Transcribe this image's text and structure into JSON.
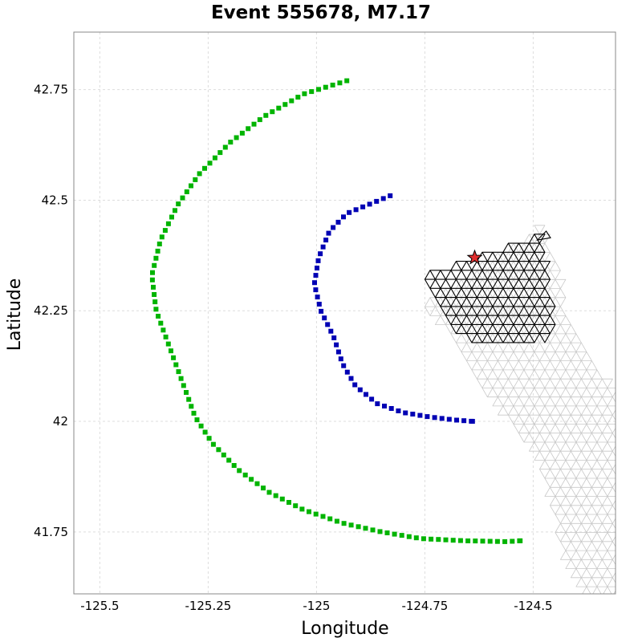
{
  "chart_data": {
    "type": "scatter",
    "title": "Event 555678, M7.17",
    "xlabel": "Longitude",
    "ylabel": "Latitude",
    "xlim": [
      -125.56,
      -124.31
    ],
    "ylim": [
      41.61,
      42.88
    ],
    "x_ticks": [
      {
        "value": -125.5,
        "label": "-125.5"
      },
      {
        "value": -125.25,
        "label": "-125.25"
      },
      {
        "value": -125.0,
        "label": "-125"
      },
      {
        "value": -124.75,
        "label": "-124.75"
      },
      {
        "value": -124.5,
        "label": "-124.5"
      }
    ],
    "y_ticks": [
      {
        "value": 41.75,
        "label": "41.75"
      },
      {
        "value": 42.0,
        "label": "42"
      },
      {
        "value": 42.25,
        "label": "42.25"
      },
      {
        "value": 42.5,
        "label": "42.5"
      },
      {
        "value": 42.75,
        "label": "42.75"
      }
    ],
    "grid": true,
    "colors": {
      "outer_contour": "#00b400",
      "inner_contour": "#0000b4",
      "fault_mesh": "#c8c8c8",
      "rupture_mesh": "#000000",
      "epicenter": "#e03030"
    },
    "series": [
      {
        "marker": "square",
        "color": "#00b400",
        "points": [
          [
            -124.93,
            42.77
          ],
          [
            -125.03,
            42.74
          ],
          [
            -125.12,
            42.69
          ],
          [
            -125.2,
            42.63
          ],
          [
            -125.27,
            42.56
          ],
          [
            -125.32,
            42.49
          ],
          [
            -125.36,
            42.41
          ],
          [
            -125.38,
            42.33
          ],
          [
            -125.37,
            42.25
          ],
          [
            -125.34,
            42.17
          ],
          [
            -125.31,
            42.09
          ],
          [
            -125.28,
            42.01
          ],
          [
            -125.24,
            41.95
          ],
          [
            -125.18,
            41.89
          ],
          [
            -125.11,
            41.84
          ],
          [
            -125.03,
            41.8
          ],
          [
            -124.94,
            41.77
          ],
          [
            -124.85,
            41.75
          ],
          [
            -124.76,
            41.735
          ],
          [
            -124.66,
            41.73
          ],
          [
            -124.56,
            41.728
          ],
          [
            -124.53,
            41.73
          ]
        ]
      },
      {
        "marker": "square",
        "color": "#0000b4",
        "points": [
          [
            -124.83,
            42.51
          ],
          [
            -124.88,
            42.49
          ],
          [
            -124.93,
            42.47
          ],
          [
            -124.97,
            42.43
          ],
          [
            -124.995,
            42.37
          ],
          [
            -125.005,
            42.31
          ],
          [
            -124.99,
            42.25
          ],
          [
            -124.96,
            42.19
          ],
          [
            -124.94,
            42.13
          ],
          [
            -124.91,
            42.08
          ],
          [
            -124.86,
            42.04
          ],
          [
            -124.8,
            42.02
          ],
          [
            -124.74,
            42.01
          ],
          [
            -124.68,
            42.003
          ],
          [
            -124.64,
            42.0
          ]
        ]
      }
    ],
    "fault_mesh_outline": [
      [
        -124.48,
        42.44
      ],
      [
        -124.44,
        42.34
      ],
      [
        -124.42,
        42.22
      ],
      [
        -124.37,
        42.14
      ],
      [
        -124.31,
        42.07
      ],
      [
        -124.31,
        41.61
      ],
      [
        -124.38,
        41.61
      ],
      [
        -124.43,
        41.7
      ],
      [
        -124.46,
        41.82
      ],
      [
        -124.49,
        41.93
      ],
      [
        -124.56,
        42.01
      ],
      [
        -124.62,
        42.08
      ],
      [
        -124.68,
        42.18
      ],
      [
        -124.72,
        42.23
      ],
      [
        -124.75,
        42.26
      ]
    ],
    "rupture_mesh_outline": [
      [
        -124.75,
        42.33
      ],
      [
        -124.6,
        42.38
      ],
      [
        -124.48,
        42.42
      ],
      [
        -124.47,
        42.33
      ],
      [
        -124.46,
        42.27
      ],
      [
        -124.45,
        42.2
      ],
      [
        -124.52,
        42.17
      ],
      [
        -124.62,
        42.18
      ],
      [
        -124.68,
        42.2
      ],
      [
        -124.71,
        42.25
      ]
    ],
    "epicenter": {
      "lon": -124.635,
      "lat": 42.37,
      "marker": "star"
    }
  }
}
